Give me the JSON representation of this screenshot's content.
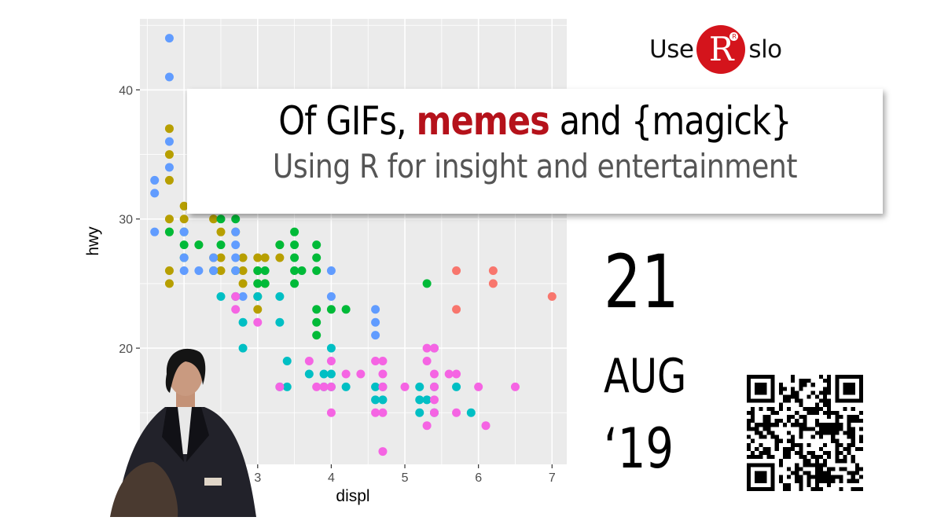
{
  "logo": {
    "text_before": "Use",
    "badge_letter": "R",
    "registered_mark": "R",
    "text_after": "slo",
    "badge_color": "#d4141c"
  },
  "title": {
    "prefix": "Of GIFs, ",
    "accent": "memes",
    "suffix": " and {magick}",
    "accent_color": "#b5121b"
  },
  "subtitle": "Using R for insight and entertainment",
  "date": {
    "day": "21",
    "month": "AUG",
    "year": "‘19"
  },
  "qr_icon": "qr-code-icon",
  "person_image": "confused-man-meme-figure",
  "chart_data": {
    "type": "scatter",
    "xlabel": "displ",
    "ylabel": "hwy",
    "xlim": [
      1.4,
      7.2
    ],
    "ylim": [
      11,
      45.5
    ],
    "x_ticks": [
      3,
      4,
      5,
      6,
      7
    ],
    "x_tick_labels": [
      "3",
      "4",
      "5",
      "6",
      "7"
    ],
    "y_ticks": [
      20,
      30,
      40
    ],
    "y_tick_labels": [
      "20",
      "30",
      "40"
    ],
    "grid": true,
    "background": "#ebebeb",
    "series": [
      {
        "color": "#f8766d",
        "points": [
          [
            5.7,
            26
          ],
          [
            6.2,
            26
          ],
          [
            6.2,
            25
          ],
          [
            5.7,
            23
          ],
          [
            7.0,
            24
          ]
        ]
      },
      {
        "color": "#b79f00",
        "points": [
          [
            1.8,
            37
          ],
          [
            1.8,
            35
          ],
          [
            1.8,
            33
          ],
          [
            1.8,
            30
          ],
          [
            1.8,
            29
          ],
          [
            1.8,
            26
          ],
          [
            1.8,
            25
          ],
          [
            2.0,
            31
          ],
          [
            2.0,
            30
          ],
          [
            2.2,
            28
          ],
          [
            2.4,
            30
          ],
          [
            2.4,
            27
          ],
          [
            2.5,
            29
          ],
          [
            2.5,
            27
          ],
          [
            2.5,
            26
          ],
          [
            2.7,
            29
          ],
          [
            2.8,
            27
          ],
          [
            2.8,
            26
          ],
          [
            2.8,
            25
          ],
          [
            3.0,
            27
          ],
          [
            3.0,
            26
          ],
          [
            3.0,
            25
          ],
          [
            3.0,
            24
          ],
          [
            3.0,
            23
          ],
          [
            3.1,
            27
          ],
          [
            3.1,
            25
          ],
          [
            3.3,
            28
          ],
          [
            3.3,
            27
          ]
        ]
      },
      {
        "color": "#00ba38",
        "points": [
          [
            1.8,
            29
          ],
          [
            2.0,
            29
          ],
          [
            2.0,
            28
          ],
          [
            2.0,
            27
          ],
          [
            2.2,
            28
          ],
          [
            2.4,
            26
          ],
          [
            2.5,
            30
          ],
          [
            2.5,
            28
          ],
          [
            2.7,
            30
          ],
          [
            2.7,
            26
          ],
          [
            3.0,
            26
          ],
          [
            3.0,
            25
          ],
          [
            3.1,
            26
          ],
          [
            3.1,
            25
          ],
          [
            3.3,
            28
          ],
          [
            3.5,
            29
          ],
          [
            3.5,
            28
          ],
          [
            3.5,
            27
          ],
          [
            3.5,
            26
          ],
          [
            3.5,
            25
          ],
          [
            3.6,
            26
          ],
          [
            3.8,
            28
          ],
          [
            3.8,
            27
          ],
          [
            3.8,
            26
          ],
          [
            3.8,
            23
          ],
          [
            3.8,
            22
          ],
          [
            3.8,
            21
          ],
          [
            4.0,
            23
          ],
          [
            4.2,
            23
          ],
          [
            5.3,
            25
          ]
        ]
      },
      {
        "color": "#00bfc4",
        "points": [
          [
            2.5,
            24
          ],
          [
            2.7,
            24
          ],
          [
            2.8,
            22
          ],
          [
            2.8,
            20
          ],
          [
            3.0,
            24
          ],
          [
            3.3,
            24
          ],
          [
            3.3,
            22
          ],
          [
            3.3,
            17
          ],
          [
            3.4,
            19
          ],
          [
            3.4,
            17
          ],
          [
            3.7,
            18
          ],
          [
            3.9,
            18
          ],
          [
            3.9,
            17
          ],
          [
            4.0,
            20
          ],
          [
            4.0,
            18
          ],
          [
            4.0,
            17
          ],
          [
            4.2,
            17
          ],
          [
            4.6,
            17
          ],
          [
            4.6,
            16
          ],
          [
            4.7,
            17
          ],
          [
            4.7,
            16
          ],
          [
            5.2,
            17
          ],
          [
            5.2,
            16
          ],
          [
            5.2,
            15
          ],
          [
            5.3,
            16
          ],
          [
            5.4,
            17
          ],
          [
            5.4,
            15
          ],
          [
            5.7,
            17
          ],
          [
            5.9,
            15
          ]
        ]
      },
      {
        "color": "#619cff",
        "points": [
          [
            1.8,
            44
          ],
          [
            1.8,
            41
          ],
          [
            1.6,
            33
          ],
          [
            1.6,
            32
          ],
          [
            1.6,
            29
          ],
          [
            1.8,
            36
          ],
          [
            1.8,
            34
          ],
          [
            2.0,
            29
          ],
          [
            2.0,
            27
          ],
          [
            2.0,
            26
          ],
          [
            2.2,
            26
          ],
          [
            2.4,
            27
          ],
          [
            2.4,
            26
          ],
          [
            2.7,
            29
          ],
          [
            2.7,
            28
          ],
          [
            2.7,
            27
          ],
          [
            2.7,
            26
          ],
          [
            2.8,
            24
          ],
          [
            4.0,
            26
          ],
          [
            4.0,
            24
          ],
          [
            4.6,
            23
          ],
          [
            4.6,
            22
          ],
          [
            4.6,
            21
          ],
          [
            5.4,
            20
          ]
        ]
      },
      {
        "color": "#f564e3",
        "points": [
          [
            2.7,
            24
          ],
          [
            2.7,
            23
          ],
          [
            3.0,
            22
          ],
          [
            3.3,
            17
          ],
          [
            3.7,
            19
          ],
          [
            3.8,
            17
          ],
          [
            3.9,
            17
          ],
          [
            4.0,
            19
          ],
          [
            4.0,
            17
          ],
          [
            4.0,
            15
          ],
          [
            4.2,
            18
          ],
          [
            4.4,
            18
          ],
          [
            4.6,
            19
          ],
          [
            4.6,
            15
          ],
          [
            4.7,
            19
          ],
          [
            4.7,
            18
          ],
          [
            4.7,
            17
          ],
          [
            4.7,
            15
          ],
          [
            4.7,
            12
          ],
          [
            5.0,
            17
          ],
          [
            5.3,
            20
          ],
          [
            5.3,
            19
          ],
          [
            5.3,
            14
          ],
          [
            5.4,
            20
          ],
          [
            5.4,
            18
          ],
          [
            5.4,
            17
          ],
          [
            5.4,
            16
          ],
          [
            5.4,
            15
          ],
          [
            5.6,
            18
          ],
          [
            5.7,
            18
          ],
          [
            5.7,
            15
          ],
          [
            6.0,
            17
          ],
          [
            6.1,
            14
          ],
          [
            6.5,
            17
          ]
        ]
      }
    ]
  }
}
